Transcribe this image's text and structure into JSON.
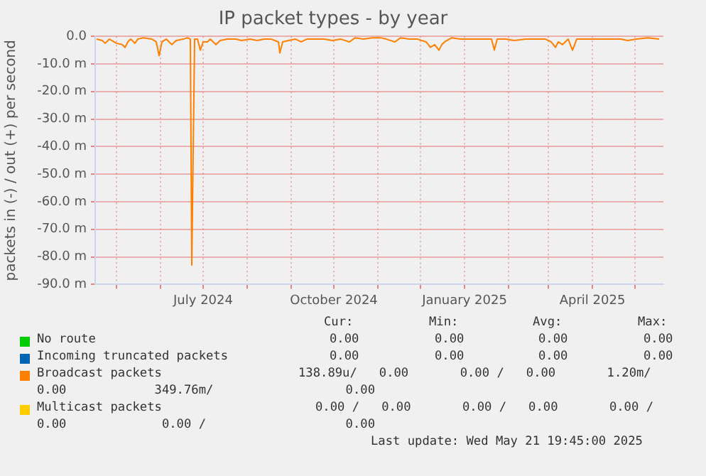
{
  "chart_data": {
    "type": "line",
    "title": "IP packet types - by year",
    "ylabel": "packets in (-) / out (+) per second",
    "xlim": [
      "2024-04-16",
      "2025-05-21"
    ],
    "xticks": [
      {
        "value": "2024-05-01",
        "label": null
      },
      {
        "value": "2024-06-01",
        "label": null
      },
      {
        "value": "2024-07-01",
        "label": "July 2024"
      },
      {
        "value": "2024-08-01",
        "label": null
      },
      {
        "value": "2024-09-01",
        "label": null
      },
      {
        "value": "2024-10-01",
        "label": "October 2024"
      },
      {
        "value": "2024-11-01",
        "label": null
      },
      {
        "value": "2024-12-01",
        "label": null
      },
      {
        "value": "2025-01-01",
        "label": "January 2025"
      },
      {
        "value": "2025-02-01",
        "label": null
      },
      {
        "value": "2025-03-01",
        "label": null
      },
      {
        "value": "2025-04-01",
        "label": "April 2025"
      },
      {
        "value": "2025-05-01",
        "label": null
      }
    ],
    "ylim": [
      -90,
      0
    ],
    "yticks": [
      {
        "value": 0,
        "label": "0.0"
      },
      {
        "value": -10,
        "label": "-10.0 m"
      },
      {
        "value": -20,
        "label": "-20.0 m"
      },
      {
        "value": -30,
        "label": "-30.0 m"
      },
      {
        "value": -40,
        "label": "-40.0 m"
      },
      {
        "value": -50,
        "label": "-50.0 m"
      },
      {
        "value": -60,
        "label": "-60.0 m"
      },
      {
        "value": -70,
        "label": "-70.0 m"
      },
      {
        "value": -80,
        "label": "-80.0 m"
      },
      {
        "value": -90,
        "label": "-90.0 m"
      }
    ],
    "grid": true,
    "legend": "bottom",
    "marker": "none",
    "series": [
      {
        "name": "No route",
        "color": "#00cc00"
      },
      {
        "name": "Incoming truncated packets",
        "color": "#0066b3"
      },
      {
        "name": "Multicast packets",
        "color": "#ffcc00"
      },
      {
        "name": "Broadcast packets",
        "color": "#ff8000",
        "x": [
          "2024-04-17",
          "2024-04-21",
          "2024-04-23",
          "2024-04-26",
          "2024-05-01",
          "2024-05-05",
          "2024-05-07",
          "2024-05-09",
          "2024-05-11",
          "2024-05-14",
          "2024-05-16",
          "2024-05-20",
          "2024-05-26",
          "2024-05-29",
          "2024-05-31",
          "2024-06-02",
          "2024-06-05",
          "2024-06-09",
          "2024-06-12",
          "2024-06-17",
          "2024-06-20",
          "2024-06-22",
          "2024-06-23",
          "2024-06-25",
          "2024-06-27",
          "2024-06-29",
          "2024-07-01",
          "2024-07-04",
          "2024-07-06",
          "2024-07-10",
          "2024-07-13",
          "2024-07-18",
          "2024-07-24",
          "2024-07-28",
          "2024-08-03",
          "2024-08-08",
          "2024-08-13",
          "2024-08-18",
          "2024-08-23",
          "2024-08-24",
          "2024-08-26",
          "2024-08-30",
          "2024-09-04",
          "2024-09-08",
          "2024-09-12",
          "2024-09-18",
          "2024-09-24",
          "2024-09-30",
          "2024-10-06",
          "2024-10-12",
          "2024-10-16",
          "2024-10-22",
          "2024-10-28",
          "2024-11-03",
          "2024-11-07",
          "2024-11-13",
          "2024-11-17",
          "2024-11-23",
          "2024-11-29",
          "2024-12-05",
          "2024-12-08",
          "2024-12-11",
          "2024-12-14",
          "2024-12-16",
          "2024-12-18",
          "2024-12-23",
          "2024-12-29",
          "2025-01-06",
          "2025-01-14",
          "2025-01-20",
          "2025-01-22",
          "2025-01-24",
          "2025-01-30",
          "2025-02-05",
          "2025-02-13",
          "2025-02-21",
          "2025-02-27",
          "2025-03-03",
          "2025-03-06",
          "2025-03-08",
          "2025-03-11",
          "2025-03-15",
          "2025-03-18",
          "2025-03-21",
          "2025-03-27",
          "2025-04-04",
          "2025-04-12",
          "2025-04-21",
          "2025-04-26",
          "2025-05-02",
          "2025-05-10",
          "2025-05-18"
        ],
        "values": [
          -1,
          -1.5,
          -2.5,
          -1,
          -2.5,
          -3,
          -4,
          -2,
          -1,
          -2.5,
          -1,
          -0.5,
          -1,
          -2,
          -7,
          -2,
          -1,
          -3,
          -1.5,
          -1,
          -0.5,
          -1,
          -83,
          -1,
          -1,
          -5,
          -2,
          -2,
          -1,
          -3,
          -1.5,
          -1,
          -1,
          -1.5,
          -1,
          -1.5,
          -1,
          -1,
          -2,
          -6,
          -2,
          -1.5,
          -1,
          -2,
          -1,
          -1,
          -1,
          -1.5,
          -1,
          -2,
          -0.5,
          -1,
          -0.5,
          -0.5,
          -1,
          -2,
          -0.5,
          -1,
          -1,
          -2,
          -4,
          -3,
          -5,
          -3,
          -2,
          -0.5,
          -1,
          -1,
          -1,
          -1,
          -5,
          -1,
          -1,
          -1.5,
          -1,
          -1,
          -1,
          -2,
          -4,
          -2,
          -3,
          -1,
          -5,
          -1,
          -1,
          -1,
          -1,
          -1,
          -1.5,
          -1,
          -0.5,
          -1
        ]
      }
    ],
    "annotations": [
      "Cur:",
      "Min:",
      "Avg:",
      "Max:",
      "0.00",
      "0.00",
      "0.00",
      "0.00",
      "0.00",
      "0.00",
      "0.00",
      "0.00",
      "138.89u/   0.00       0.00 /   0.00       1.20m/",
      "0.00            349.76m/                  0.00",
      "0.00 /   0.00       0.00 /   0.00       0.00 /",
      "0.00             0.00 /                   0.00",
      "Last update: Wed May 21 19:45:00 2025"
    ]
  }
}
